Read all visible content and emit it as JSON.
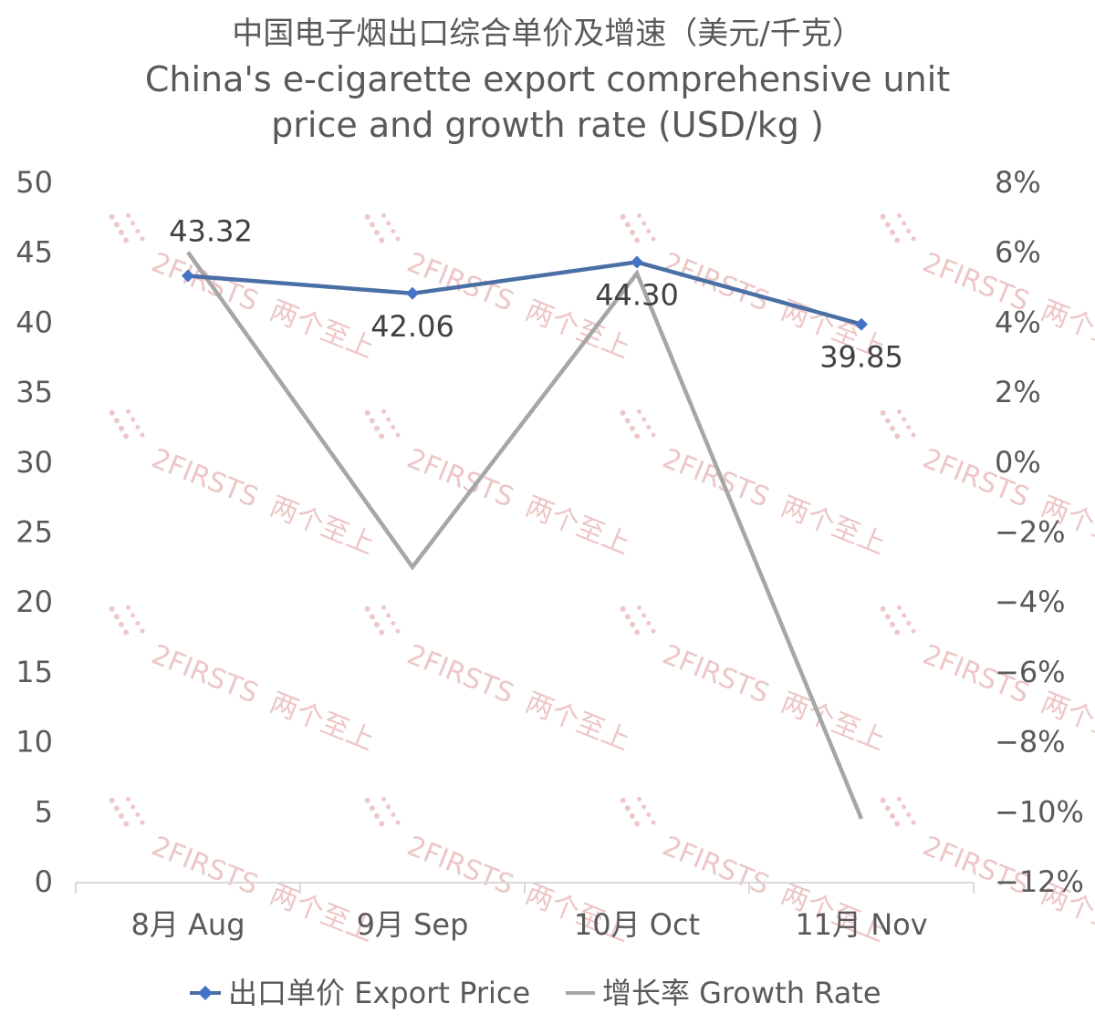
{
  "chart_data": {
    "type": "line",
    "title_zh": "中国电子烟出口综合单价及增速（美元/千克）",
    "title_en_line1": "China's e-cigarette export comprehensive unit",
    "title_en_line2": "price and growth rate (USD/kg )",
    "categories": [
      "8月 Aug",
      "9月 Sep",
      "10月 Oct",
      "11月 Nov"
    ],
    "left_axis": {
      "min": 0,
      "max": 50,
      "step": 5,
      "ticks": [
        "0",
        "5",
        "10",
        "15",
        "20",
        "25",
        "30",
        "35",
        "40",
        "45",
        "50"
      ]
    },
    "right_axis": {
      "min": -12,
      "max": 8,
      "step": 2,
      "ticks": [
        "−12%",
        "−10%",
        "−8%",
        "−6%",
        "−4%",
        "−2%",
        "0%",
        "2%",
        "4%",
        "6%",
        "8%"
      ]
    },
    "series": [
      {
        "name": "出口单价 Export Price",
        "axis": "left",
        "color": "#4a6fa5",
        "values": [
          43.32,
          42.06,
          44.3,
          39.85
        ],
        "labels": [
          "43.32",
          "42.06",
          "44.30",
          "39.85"
        ]
      },
      {
        "name": "增长率 Growth Rate",
        "axis": "right",
        "color": "#a6a6a6",
        "values": [
          6.0,
          -3.0,
          5.4,
          -10.2
        ]
      }
    ],
    "legend": "bottom",
    "grid": false
  },
  "watermark": {
    "brand": "2FIRSTS",
    "brand_zh": "两个至上"
  }
}
